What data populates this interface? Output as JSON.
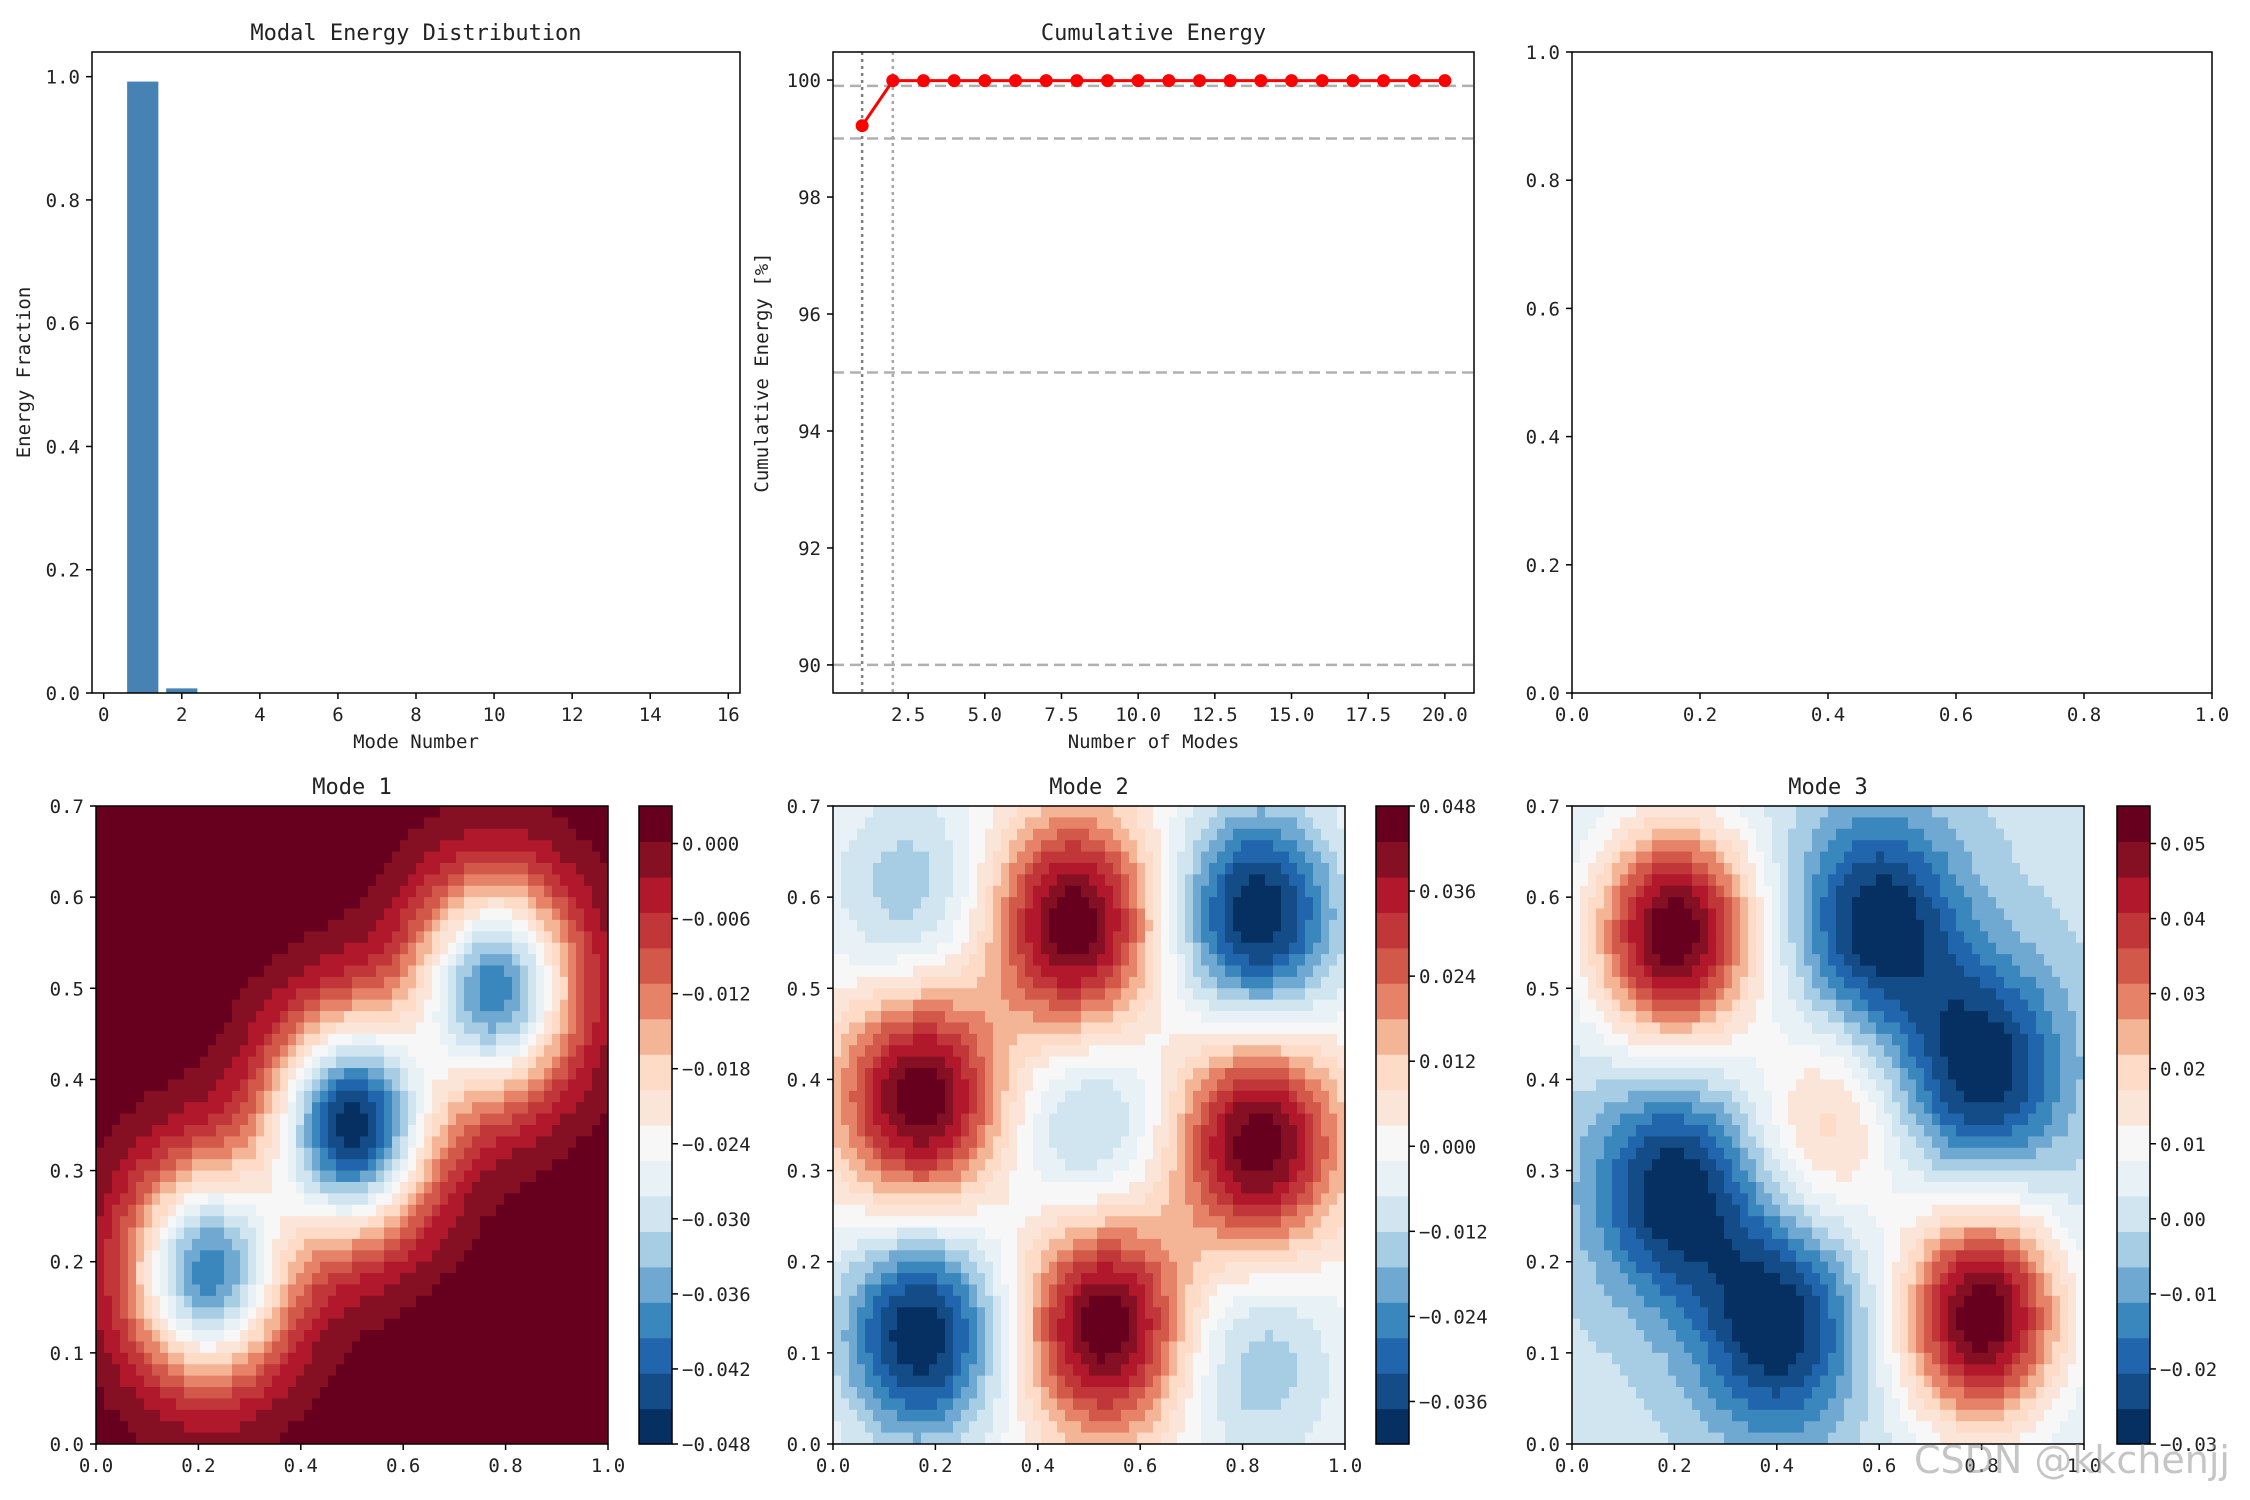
{
  "watermark": "CSDN @kkchenjj",
  "colormap": [
    "#053061",
    "#134c87",
    "#2166ac",
    "#3a87bd",
    "#6fa8d0",
    "#a6cde3",
    "#d1e5f0",
    "#e8f1f6",
    "#f7f7f7",
    "#fbe5d8",
    "#fddbc7",
    "#f4b496",
    "#e58267",
    "#d25849",
    "#c13639",
    "#b2182b",
    "#850f23",
    "#67001f"
  ],
  "chart_data": [
    {
      "id": "energy",
      "type": "bar",
      "title": "Modal Energy Distribution",
      "xlabel": "Mode Number",
      "ylabel": "Energy Fraction",
      "x": [
        1,
        2,
        3,
        4,
        5,
        6,
        7,
        8,
        9,
        10,
        11,
        12,
        13,
        14,
        15
      ],
      "values": [
        0.992,
        0.0075,
        0.0003,
        0.0001,
        0.0001,
        0,
        0,
        0,
        0,
        0,
        0,
        0,
        0,
        0,
        0
      ],
      "color": "#4682b4",
      "xlim": [
        -0.3,
        16.3
      ],
      "ylim": [
        0,
        1.04
      ],
      "xticks": [
        "0",
        "2",
        "4",
        "6",
        "8",
        "10",
        "12",
        "14",
        "16"
      ],
      "yticks": [
        "0.0",
        "0.2",
        "0.4",
        "0.6",
        "0.8",
        "1.0"
      ]
    },
    {
      "id": "cumulative",
      "type": "line",
      "title": "Cumulative Energy",
      "xlabel": "Number of Modes",
      "ylabel": "Cumulative Energy [%]",
      "x": [
        1,
        2,
        3,
        4,
        5,
        6,
        7,
        8,
        9,
        10,
        11,
        12,
        13,
        14,
        15,
        16,
        17,
        18,
        19,
        20
      ],
      "values": [
        99.22,
        99.99,
        99.99,
        99.99,
        99.99,
        99.99,
        99.99,
        99.99,
        99.99,
        99.99,
        99.99,
        99.99,
        99.99,
        99.99,
        99.99,
        99.99,
        99.99,
        99.99,
        99.99,
        99.99
      ],
      "color": "#ff0000",
      "hlines": [
        90,
        95,
        99,
        99.9
      ],
      "vlines": [
        1,
        2
      ],
      "xlim": [
        0.05,
        20.95
      ],
      "ylim": [
        89.52,
        100.48
      ],
      "xticks": [
        "2.5",
        "5.0",
        "7.5",
        "10.0",
        "12.5",
        "15.0",
        "17.5",
        "20.0"
      ],
      "yticks": [
        "90",
        "92",
        "94",
        "96",
        "98",
        "100"
      ]
    },
    {
      "id": "empty",
      "type": "scatter",
      "title": "",
      "xlim": [
        0,
        1
      ],
      "ylim": [
        0,
        1
      ],
      "xticks": [
        "0.0",
        "0.2",
        "0.4",
        "0.6",
        "0.8",
        "1.0"
      ],
      "yticks": [
        "0.0",
        "0.2",
        "0.4",
        "0.6",
        "0.8",
        "1.0"
      ]
    },
    {
      "id": "mode1",
      "type": "heatmap",
      "title": "Mode 1",
      "xlim": [
        0,
        1
      ],
      "ylim": [
        0,
        0.7
      ],
      "xticks": [
        "0.0",
        "0.2",
        "0.4",
        "0.6",
        "0.8",
        "1.0"
      ],
      "yticks": [
        "0.0",
        "0.1",
        "0.2",
        "0.3",
        "0.4",
        "0.5",
        "0.6",
        "0.7"
      ],
      "colorbar_range": [
        -0.048,
        0.003
      ],
      "colorbar_ticks": [
        "0.000",
        "−0.006",
        "−0.012",
        "−0.018",
        "−0.024",
        "−0.030",
        "−0.036",
        "−0.042",
        "−0.048"
      ],
      "features": [
        {
          "x": 0.5,
          "y": 0.35,
          "amplitude": -0.048
        },
        {
          "x": 0.22,
          "y": 0.19,
          "amplitude": -0.04
        },
        {
          "x": 0.78,
          "y": 0.5,
          "amplitude": -0.04
        }
      ]
    },
    {
      "id": "mode2",
      "type": "heatmap",
      "title": "Mode 2",
      "xlim": [
        0,
        1
      ],
      "ylim": [
        0,
        0.7
      ],
      "xticks": [
        "0.0",
        "0.2",
        "0.4",
        "0.6",
        "0.8",
        "1.0"
      ],
      "yticks": [
        "0.0",
        "0.1",
        "0.2",
        "0.3",
        "0.4",
        "0.5",
        "0.6",
        "0.7"
      ],
      "colorbar_range": [
        -0.042,
        0.048
      ],
      "colorbar_ticks": [
        "0.048",
        "0.036",
        "0.024",
        "0.012",
        "0.000",
        "−0.012",
        "−0.024",
        "−0.036"
      ],
      "features": [
        {
          "x": 0.17,
          "y": 0.12,
          "amplitude": -0.042
        },
        {
          "x": 0.83,
          "y": 0.58,
          "amplitude": -0.042
        },
        {
          "x": 0.47,
          "y": 0.57,
          "amplitude": 0.048
        },
        {
          "x": 0.17,
          "y": 0.38,
          "amplitude": 0.048
        },
        {
          "x": 0.53,
          "y": 0.13,
          "amplitude": 0.048
        },
        {
          "x": 0.83,
          "y": 0.33,
          "amplitude": 0.048
        },
        {
          "x": 0.5,
          "y": 0.35,
          "amplitude": -0.016
        },
        {
          "x": 0.83,
          "y": 0.09,
          "amplitude": -0.016
        },
        {
          "x": 0.15,
          "y": 0.6,
          "amplitude": -0.016
        }
      ]
    },
    {
      "id": "mode3",
      "type": "heatmap",
      "title": "Mode 3",
      "xlim": [
        0,
        1
      ],
      "ylim": [
        0,
        0.7
      ],
      "xticks": [
        "0.0",
        "0.2",
        "0.4",
        "0.6",
        "0.8",
        "1.0"
      ],
      "yticks": [
        "0.0",
        "0.1",
        "0.2",
        "0.3",
        "0.4",
        "0.5",
        "0.6",
        "0.7"
      ],
      "colorbar_range": [
        -0.03,
        0.055
      ],
      "colorbar_ticks": [
        "0.05",
        "0.04",
        "0.03",
        "0.02",
        "0.01",
        "0.00",
        "−0.01",
        "−0.02",
        "−0.03"
      ],
      "features": [
        {
          "x": 0.2,
          "y": 0.56,
          "amplitude": 0.055
        },
        {
          "x": 0.8,
          "y": 0.14,
          "amplitude": 0.055
        },
        {
          "x": 0.5,
          "y": 0.35,
          "amplitude": 0.02
        },
        {
          "x": 0.2,
          "y": 0.28,
          "amplitude": -0.03
        },
        {
          "x": 0.4,
          "y": 0.13,
          "amplitude": -0.03
        },
        {
          "x": 0.6,
          "y": 0.57,
          "amplitude": -0.03
        },
        {
          "x": 0.8,
          "y": 0.41,
          "amplitude": -0.03
        }
      ]
    }
  ]
}
